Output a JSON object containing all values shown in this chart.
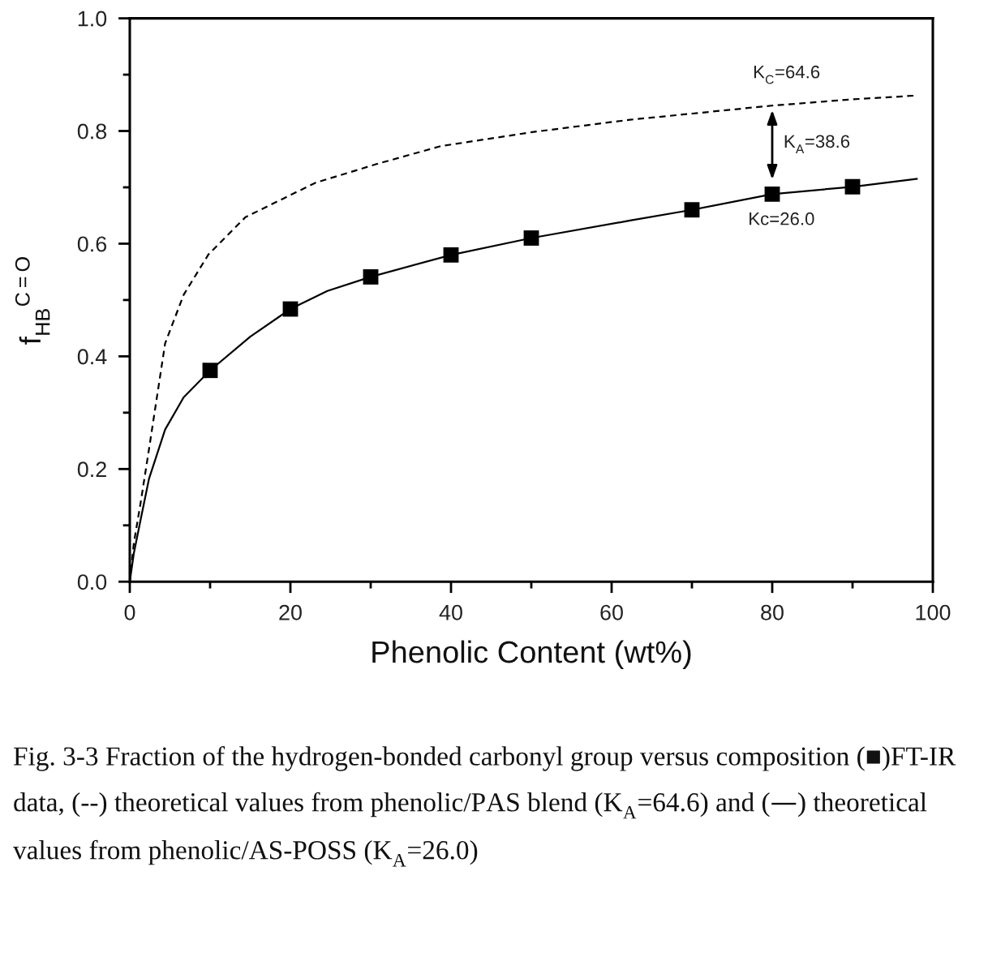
{
  "chart_data": {
    "type": "line",
    "xlabel": "Phenolic Content (wt%)",
    "ylabel": "f$_{HB}$$^{C=O}$",
    "xlim": [
      0,
      100
    ],
    "ylim": [
      0,
      1
    ],
    "xticks": [
      0,
      {
        "value": 10,
        "label": null
      },
      20,
      {
        "value": 30,
        "label": null
      },
      40,
      {
        "value": 50,
        "label": null
      },
      60,
      {
        "value": 70,
        "label": null
      },
      80,
      {
        "value": 90,
        "label": null
      },
      100
    ],
    "yticks": [
      {
        "value": 0,
        "label": "0.0"
      },
      {
        "value": 0.1,
        "label": null
      },
      {
        "value": 0.2,
        "label": "0.2"
      },
      {
        "value": 0.3,
        "label": null
      },
      {
        "value": 0.4,
        "label": "0.4"
      },
      {
        "value": 0.5,
        "label": null
      },
      {
        "value": 0.6,
        "label": "0.6"
      },
      {
        "value": 0.7,
        "label": null
      },
      {
        "value": 0.8,
        "label": "0.8"
      },
      {
        "value": 0.9,
        "label": null
      },
      {
        "value": 1.0,
        "label": "1.0"
      }
    ],
    "series": [
      {
        "line_style": "dashed",
        "marker": "none",
        "color": "#000000",
        "x": [
          0,
          0.5,
          1.35,
          2.4,
          4.4,
          6.7,
          9.8,
          14.4,
          23.1,
          30.9,
          38.7,
          50.1,
          62.3,
          70.1,
          79.9,
          89.8,
          98
        ],
        "values": [
          0,
          0.068,
          0.14,
          0.236,
          0.423,
          0.509,
          0.581,
          0.647,
          0.708,
          0.742,
          0.773,
          0.798,
          0.82,
          0.831,
          0.845,
          0.856,
          0.863
        ]
      },
      {
        "line_style": "solid",
        "marker": "none",
        "color": "#000000",
        "x": [
          0,
          0.5,
          1.35,
          2.4,
          4.4,
          6.7,
          10,
          15,
          20,
          24.6,
          30,
          40,
          50,
          62.3,
          70,
          80,
          90,
          98
        ],
        "values": [
          0,
          0.05,
          0.11,
          0.183,
          0.27,
          0.327,
          0.375,
          0.435,
          0.484,
          0.516,
          0.541,
          0.58,
          0.61,
          0.641,
          0.66,
          0.688,
          0.701,
          0.715
        ]
      },
      {
        "type": "scatter",
        "marker": "square",
        "color": "#000000",
        "x": [
          10,
          20,
          30,
          40,
          50,
          70,
          80,
          90
        ],
        "values": [
          0.375,
          0.484,
          0.541,
          0.58,
          0.61,
          0.66,
          0.688,
          0.701
        ]
      }
    ],
    "annotations": [
      {
        "text": "K$_{C}$=64.6",
        "x": 80,
        "y": 0.845
      },
      "K$_{A}$=38.6",
      {
        "text": "Kc=26.0",
        "x": 80,
        "y": 0.688
      },
      "Fig. 3-3 Fraction of the hydrogen-bonded carbonyl group versus composition (■)FT-IR data, (--) theoretical values from phenolic/PAS blend (K$_{A}$=64.6) and (—) theoretical values from phenolic/AS-POSS (K$_{A}$=26.0)"
    ]
  }
}
